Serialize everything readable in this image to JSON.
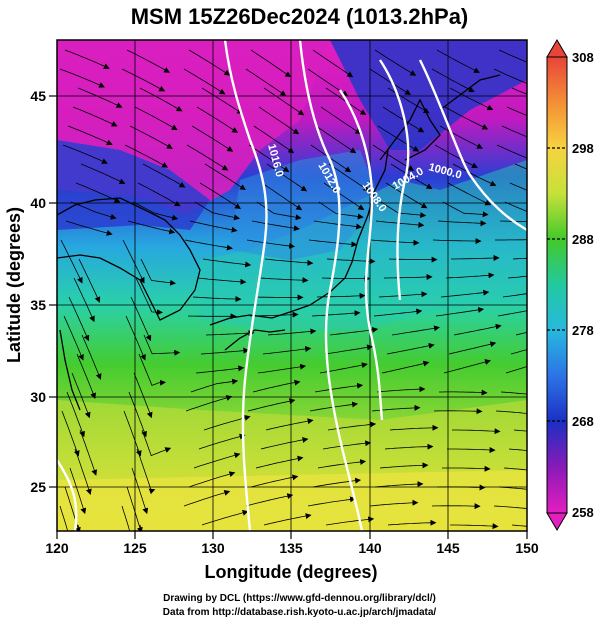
{
  "title": "MSM 15Z26Dec2024 (1013.2hPa)",
  "axes": {
    "xlabel": "Longitude (degrees)",
    "ylabel": "Latitude  (degrees)",
    "xticks": [
      "120",
      "125",
      "130",
      "135",
      "140",
      "145",
      "150"
    ],
    "yticks": [
      "25",
      "30",
      "35",
      "40",
      "45"
    ]
  },
  "colorbar": {
    "ticks": [
      "308",
      "298",
      "288",
      "278",
      "268",
      "258"
    ],
    "colors": [
      "#e8453a",
      "#f48f36",
      "#f7d340",
      "#c5e13a",
      "#43c92b",
      "#22c9a0",
      "#27b8de",
      "#2c73e6",
      "#1c2fc4",
      "#8a1ab8",
      "#e31fbf"
    ]
  },
  "contours": [
    {
      "label": "1016.0"
    },
    {
      "label": "1012.0"
    },
    {
      "label": "1008.0"
    },
    {
      "label": "1004.0"
    },
    {
      "label": "1000.0"
    }
  ],
  "credits": {
    "line1": "Drawing by DCL (https://www.gfd-dennou.org/library/dcl/)",
    "line2": "Data from http://database.rish.kyoto-u.ac.jp/arch/jmadata/"
  }
}
